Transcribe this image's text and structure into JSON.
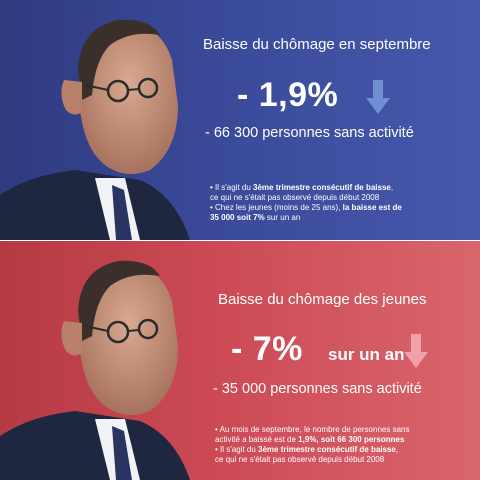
{
  "panels": [
    {
      "headline": "Baisse du chômage en septembre",
      "big_value": "- 1,9%",
      "subline": "- 66 300 personnes sans activité",
      "bullets": [
        {
          "parts": [
            "• Il s'agit du ",
            "3ème trimestre consécutif de baisse",
            ","
          ]
        },
        {
          "parts": [
            "ce qui ne s'était pas observé depuis début 2008"
          ]
        },
        {
          "parts": [
            "• Chez les jeunes (moins de 25 ans), ",
            "la baisse est de"
          ]
        },
        {
          "parts": [
            "35 000 soit 7%",
            " sur un an"
          ]
        }
      ],
      "colors": {
        "background": "#3a4a99",
        "arrow": "#6f8fd0"
      },
      "arrow_icon": "arrow-down-icon"
    },
    {
      "headline": "Baisse du chômage des jeunes",
      "big_value": "- 7%",
      "suffix": "sur un an",
      "subline": "- 35 000 personnes sans activité",
      "bullets": [
        {
          "parts": [
            "• Au mois de septembre, le nombre de personnes sans"
          ]
        },
        {
          "parts": [
            "activité a baissé est de ",
            "1,9%, soit 66 300 personnes"
          ]
        },
        {
          "parts": [
            "• Il s'agit du ",
            "3ème trimestre consécutif de baisse",
            ","
          ]
        },
        {
          "parts": [
            "ce qui ne s'était pas observé depuis début 2008"
          ]
        }
      ],
      "colors": {
        "background": "#cc4a55",
        "arrow": "#f2a0aa"
      },
      "arrow_icon": "arrow-down-icon"
    }
  ]
}
